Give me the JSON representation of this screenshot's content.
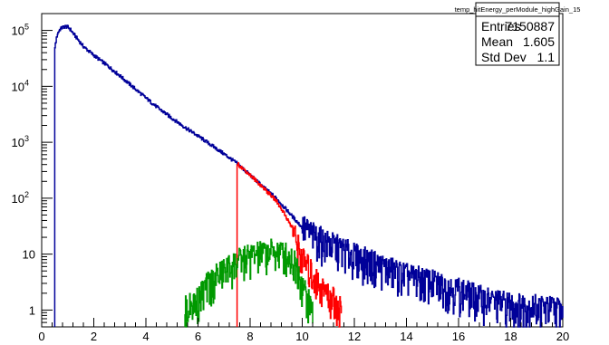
{
  "chart_data": {
    "type": "histogram",
    "y_scale": "log",
    "xlim": [
      0,
      20
    ],
    "ylim": [
      0.5,
      200000
    ],
    "grid": false,
    "x_ticks": [
      "0",
      "2",
      "4",
      "6",
      "8",
      "10",
      "12",
      "14",
      "16",
      "18",
      "20"
    ],
    "y_ticks": [
      {
        "value": 1,
        "label": "1"
      },
      {
        "value": 10,
        "label": "10"
      },
      {
        "value": 100,
        "label": "10",
        "exp": "2"
      },
      {
        "value": 1000,
        "label": "10",
        "exp": "3"
      },
      {
        "value": 10000,
        "label": "10",
        "exp": "4"
      },
      {
        "value": 100000,
        "label": "10",
        "exp": "5"
      }
    ],
    "stats_box": {
      "title": "temp_hitEnergy_perModule_highGain_15",
      "rows": [
        {
          "label": "Entries",
          "value": "7150887"
        },
        {
          "label": "Mean",
          "value": "1.605"
        },
        {
          "label": "Std Dev",
          "value": "1.1"
        }
      ]
    },
    "series": [
      {
        "color": "#000099",
        "points": [
          [
            0.5,
            48000
          ],
          [
            0.6,
            85000
          ],
          [
            0.7,
            105000
          ],
          [
            0.8,
            113000
          ],
          [
            0.9,
            118000
          ],
          [
            1.0,
            115000
          ],
          [
            1.1,
            105000
          ],
          [
            1.2,
            90000
          ],
          [
            1.4,
            68000
          ],
          [
            1.6,
            52000
          ],
          [
            1.8,
            43000
          ],
          [
            2.0,
            36000
          ],
          [
            2.5,
            24000
          ],
          [
            3.0,
            15500
          ],
          [
            3.5,
            9800
          ],
          [
            4.0,
            6200
          ],
          [
            4.5,
            4000
          ],
          [
            5.0,
            2700
          ],
          [
            5.5,
            1850
          ],
          [
            6.0,
            1300
          ],
          [
            6.5,
            900
          ],
          [
            7.0,
            620
          ],
          [
            7.5,
            420
          ],
          [
            8.0,
            260
          ],
          [
            8.5,
            160
          ],
          [
            9.0,
            100
          ],
          [
            9.5,
            55
          ],
          [
            10.0,
            30
          ],
          [
            10.5,
            20
          ],
          [
            11.0,
            15
          ],
          [
            11.5,
            12
          ],
          [
            12.0,
            9
          ],
          [
            13.0,
            6
          ],
          [
            14.0,
            4
          ],
          [
            15.0,
            3
          ],
          [
            16.0,
            2.2
          ],
          [
            17.0,
            1.5
          ],
          [
            18.0,
            1.2
          ],
          [
            19.0,
            1.1
          ],
          [
            20.0,
            1.0
          ]
        ]
      },
      {
        "color": "#ff0000",
        "points": [
          [
            7.5,
            420
          ],
          [
            8.0,
            260
          ],
          [
            8.5,
            155
          ],
          [
            9.0,
            90
          ],
          [
            9.3,
            55
          ],
          [
            9.6,
            30
          ],
          [
            9.8,
            15
          ],
          [
            10.0,
            8
          ],
          [
            10.3,
            5
          ],
          [
            10.6,
            3
          ],
          [
            10.9,
            2
          ],
          [
            11.2,
            1.5
          ],
          [
            11.5,
            1.0
          ]
        ]
      },
      {
        "color": "#009900",
        "points": [
          [
            5.5,
            1.0
          ],
          [
            6.0,
            1.5
          ],
          [
            6.3,
            2.5
          ],
          [
            6.6,
            3.5
          ],
          [
            7.0,
            5
          ],
          [
            7.5,
            7
          ],
          [
            8.0,
            9
          ],
          [
            8.5,
            10
          ],
          [
            9.0,
            11
          ],
          [
            9.3,
            10
          ],
          [
            9.6,
            8
          ],
          [
            9.8,
            6
          ],
          [
            10.0,
            3
          ],
          [
            10.2,
            1.5
          ],
          [
            10.4,
            1.0
          ]
        ]
      }
    ]
  }
}
